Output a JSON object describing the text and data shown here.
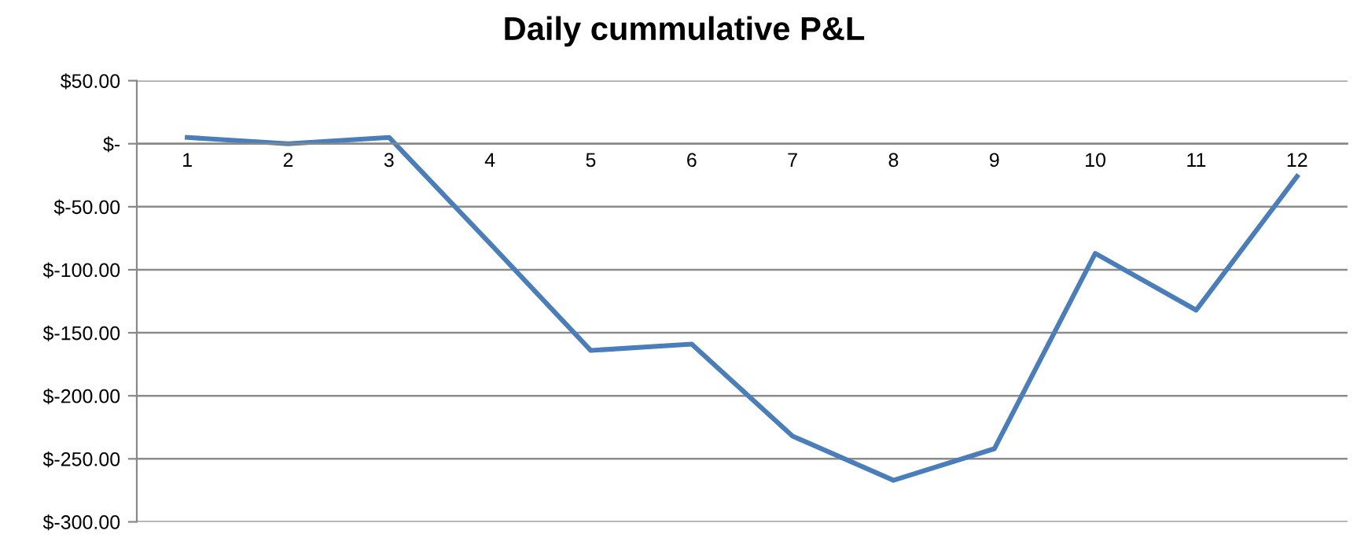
{
  "chart_data": {
    "type": "line",
    "title": "Daily cummulative P&L",
    "categories": [
      "1",
      "2",
      "3",
      "4",
      "5",
      "6",
      "7",
      "8",
      "9",
      "10",
      "11",
      "12"
    ],
    "series": [
      {
        "color": "#4a7ebb",
        "values": [
          5,
          0,
          5,
          -79,
          -164,
          -159,
          -232,
          -267,
          -242,
          -87,
          -132,
          -26
        ]
      }
    ],
    "ylim": [
      -300,
      50
    ],
    "yticks": [
      {
        "value": -300,
        "label": "$-300.00"
      },
      {
        "value": -250,
        "label": "$-250.00"
      },
      {
        "value": -200,
        "label": "$-200.00"
      },
      {
        "value": -150,
        "label": "$-150.00"
      },
      {
        "value": -100,
        "label": "$-100.00"
      },
      {
        "value": -50,
        "label": "$-50.00"
      },
      {
        "value": 0,
        "label": "$-"
      },
      {
        "value": 50,
        "label": "$50.00"
      }
    ],
    "grid": "y",
    "legend": false,
    "marker": "none",
    "line_style": "solid"
  }
}
